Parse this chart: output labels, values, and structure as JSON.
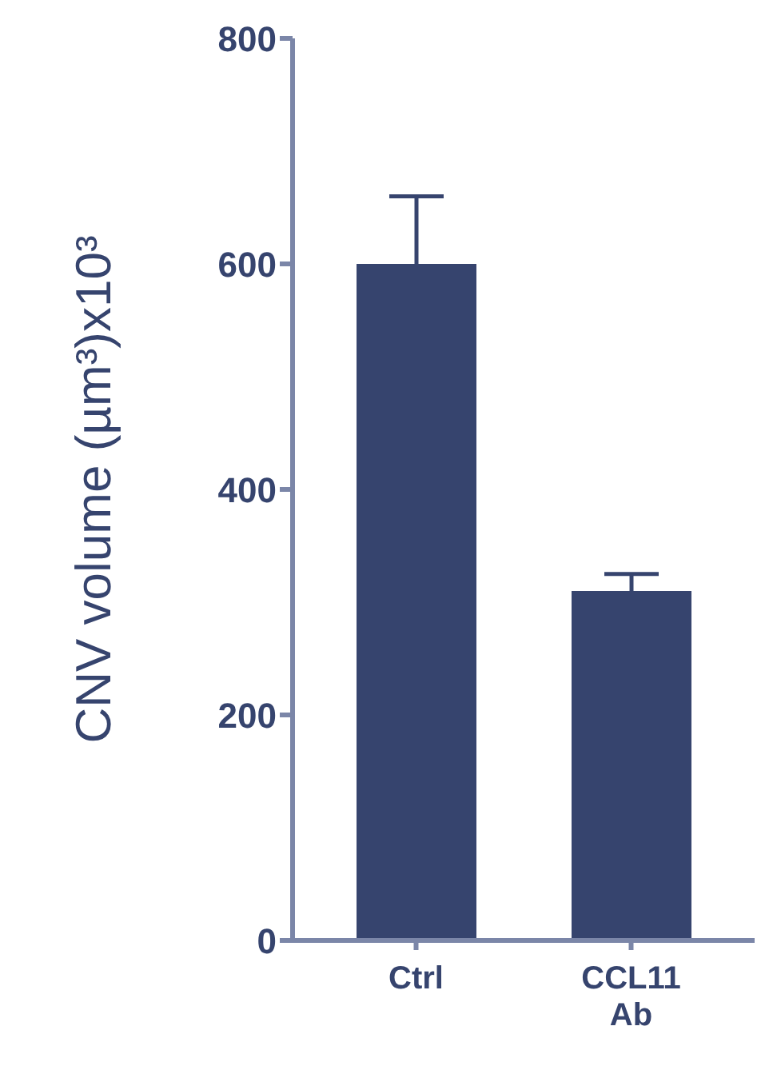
{
  "chart_data": {
    "type": "bar",
    "ylabel": "CNV volume (µm³)x10³",
    "categories": [
      "Ctrl",
      "CCL11 Ab"
    ],
    "values": [
      600,
      310
    ],
    "errors": [
      60,
      15
    ],
    "color": "#36446e",
    "ylim": [
      0,
      800
    ],
    "yticks": [
      0,
      200,
      400,
      600,
      800
    ],
    "grid": false,
    "legend": false
  }
}
